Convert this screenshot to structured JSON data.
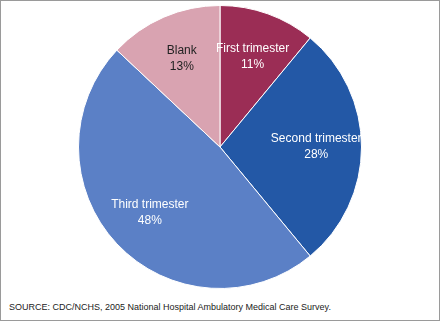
{
  "chart_data": {
    "type": "pie",
    "categories": [
      "First trimester",
      "Second trimester",
      "Third trimester",
      "Blank"
    ],
    "values": [
      11,
      28,
      48,
      13
    ],
    "value_labels": [
      "11%",
      "28%",
      "48%",
      "13%"
    ],
    "colors": [
      "#9b2d55",
      "#2358a6",
      "#5b80c6",
      "#d9a3b1"
    ],
    "data_labels": true,
    "source": "SOURCE: CDC/NCHS, 2005 National Hospital Ambulatory Medical Care Survey."
  }
}
